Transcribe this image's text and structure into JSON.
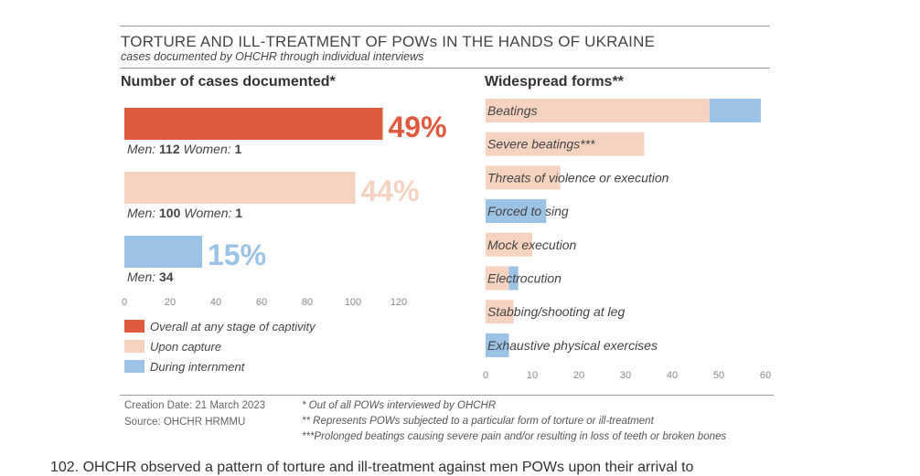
{
  "header": {
    "title": "TORTURE AND ILL-TREATMENT OF POWs IN THE HANDS OF UKRAINE",
    "subtitle": "cases documented by OHCHR through individual interviews"
  },
  "colors": {
    "overall": "#e05a3f",
    "capture": "#f6d3c1",
    "internment": "#9cc2e5"
  },
  "chart_data": [
    {
      "type": "bar",
      "orientation": "horizontal",
      "title": "Number of cases documented*",
      "xlim": [
        0,
        120
      ],
      "xticks": [
        0,
        20,
        40,
        60,
        80,
        100,
        120
      ],
      "grid": false,
      "series": [
        {
          "name": "Overall at any stage of captivity",
          "value": 113,
          "percent_label": "49%",
          "detail_prefix": "Men: ",
          "men": "112",
          "women_label": " Women: ",
          "women": "1",
          "color": "#e05a3f"
        },
        {
          "name": "Upon capture",
          "value": 101,
          "percent_label": "44%",
          "detail_prefix": "Men: ",
          "men": "100",
          "women_label": " Women: ",
          "women": "1",
          "color": "#f6d3c1"
        },
        {
          "name": "During internment",
          "value": 34,
          "percent_label": "15%",
          "detail_prefix": "Men: ",
          "men": "34",
          "women_label": "",
          "women": "",
          "color": "#9cc2e5"
        }
      ],
      "legend": {
        "position": "bottom-left",
        "entries": [
          "Overall at any stage of captivity",
          "Upon capture",
          "During internment"
        ]
      }
    },
    {
      "type": "bar",
      "orientation": "horizontal",
      "stacked": true,
      "title": "Widespread forms**",
      "xlim": [
        0,
        60
      ],
      "xticks": [
        0,
        10,
        20,
        30,
        40,
        50,
        60
      ],
      "grid": false,
      "categories": [
        "Beatings",
        "Severe beatings***",
        "Threats of violence or execution",
        "Forced to sing",
        "Mock execution",
        "Electrocution",
        "Stabbing/shooting at leg",
        "Exhaustive physical exercises"
      ],
      "series": [
        {
          "name": "Upon capture",
          "values": [
            48,
            34,
            16,
            0,
            10,
            5,
            6,
            0
          ]
        },
        {
          "name": "During internment",
          "values": [
            11,
            0,
            0,
            13,
            0,
            2,
            0,
            5
          ]
        }
      ]
    }
  ],
  "footer": {
    "creation_label": "Creation Date: ",
    "creation_date": "21 March 2023",
    "source_label": "Source: ",
    "source": "OHCHR HRMMU",
    "notes": [
      "* Out of all POWs interviewed by OHCHR",
      "** Represents POWs subjected to a particular form of torture or ill-treatment",
      "***Prolonged beatings causing severe pain and/or resulting in loss of teeth or broken bones"
    ]
  },
  "body_text": "102. OHCHR observed a pattern of torture and ill-treatment against men POWs upon their arrival to"
}
